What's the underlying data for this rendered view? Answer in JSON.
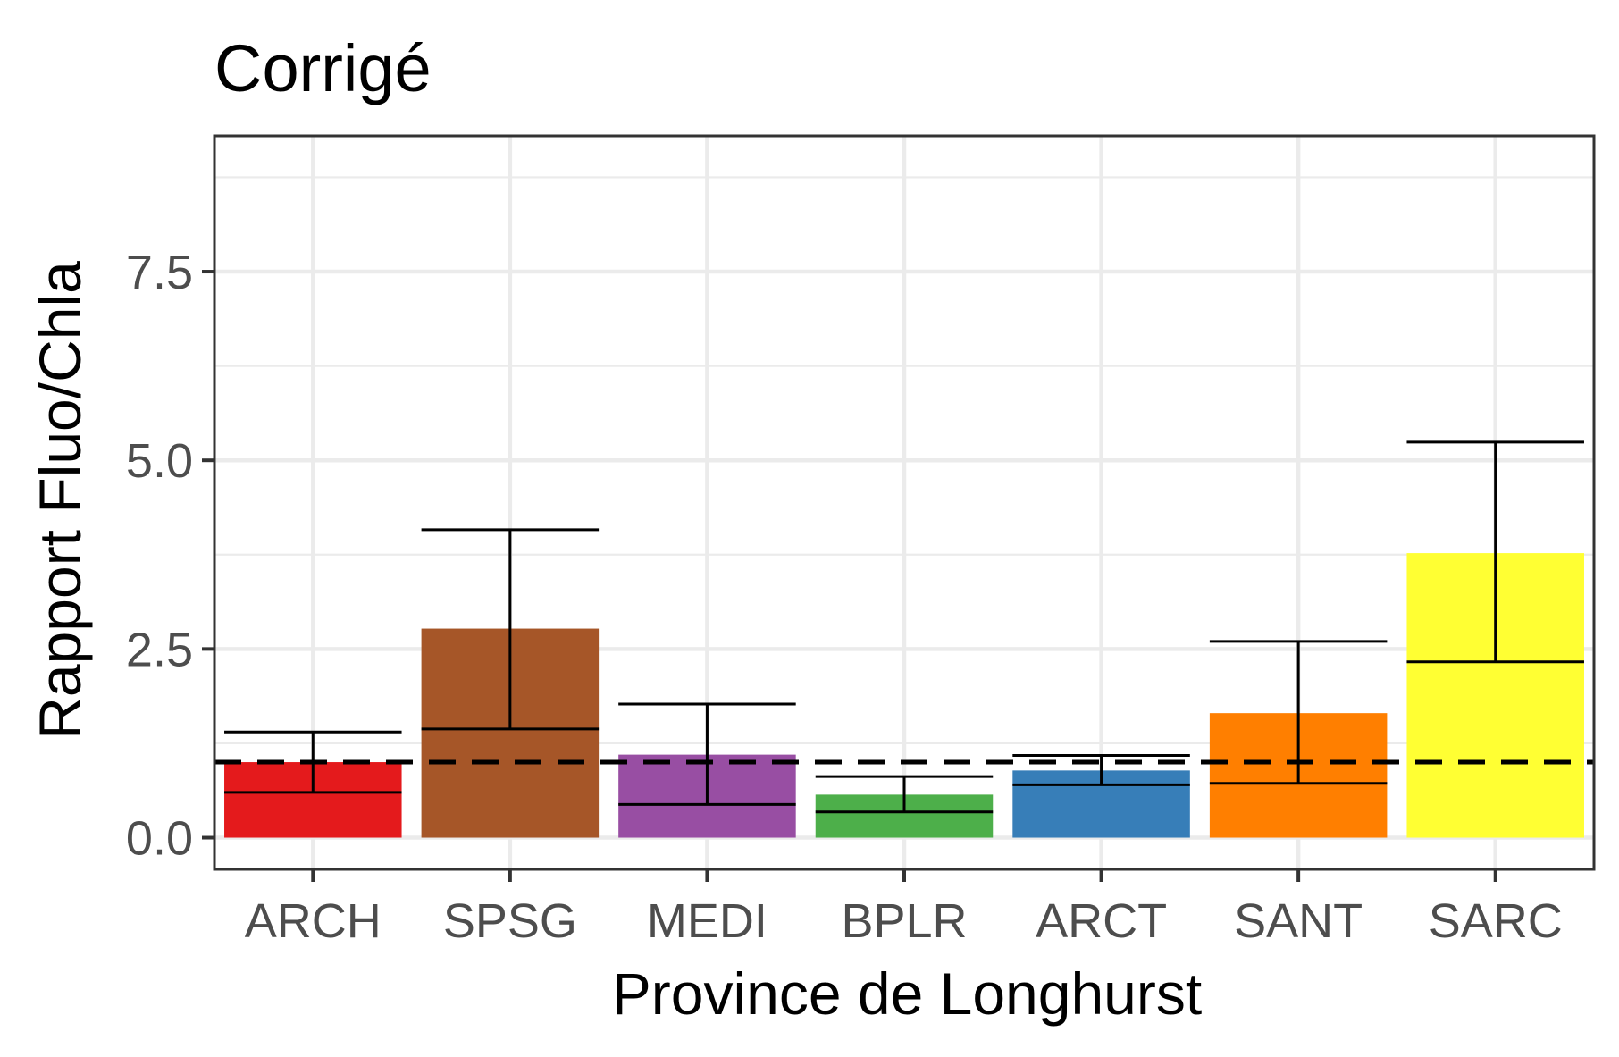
{
  "chart_data": {
    "type": "bar",
    "title": "Corrigé",
    "xlabel": "Province de Longhurst",
    "ylabel": "Rapport Fluo/Chla",
    "categories": [
      "ARCH",
      "SPSG",
      "MEDI",
      "BPLR",
      "ARCT",
      "SANT",
      "SARC"
    ],
    "values": [
      1.0,
      2.77,
      1.1,
      0.57,
      0.89,
      1.65,
      3.77
    ],
    "error_bars": {
      "lower": [
        0.6,
        1.44,
        0.44,
        0.34,
        0.7,
        0.72,
        2.33
      ],
      "upper": [
        1.4,
        4.08,
        1.77,
        0.81,
        1.09,
        2.6,
        5.24
      ]
    },
    "colors": [
      "#e41a1c",
      "#a65628",
      "#984ea3",
      "#4daf4a",
      "#377eb8",
      "#ff7f00",
      "#ffff33"
    ],
    "reference_line": {
      "y": 1.0,
      "style": "dashed",
      "color": "#000000"
    },
    "ylim": [
      -0.42,
      9.3
    ],
    "yticks": [
      0.0,
      2.5,
      5.0,
      7.5
    ],
    "ytick_labels": [
      "0.0",
      "2.5",
      "5.0",
      "7.5"
    ],
    "grid": true,
    "legend": "none"
  }
}
